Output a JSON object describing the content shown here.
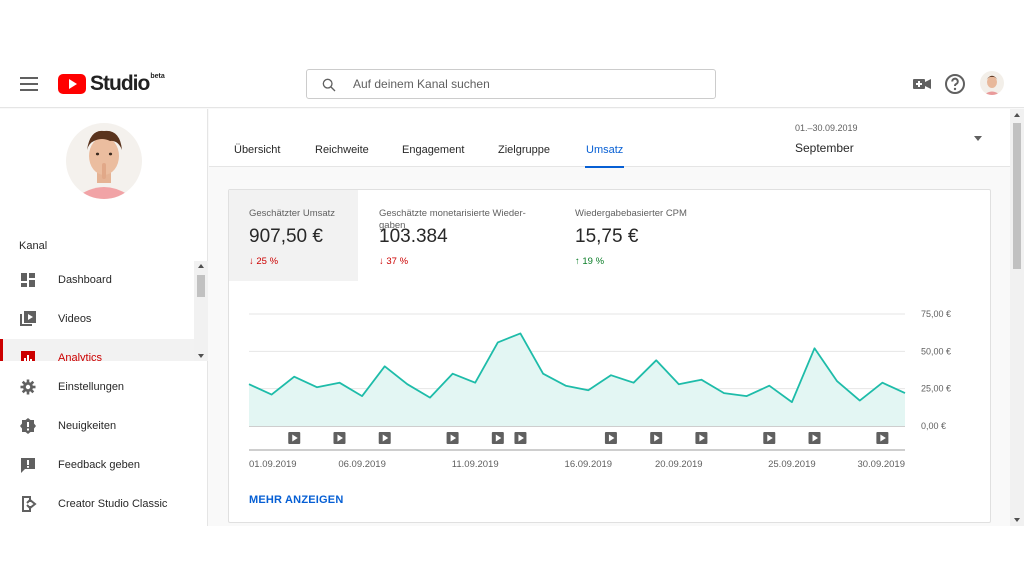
{
  "header": {
    "logo_text": "Studio",
    "logo_badge": "beta",
    "search_placeholder": "Auf deinem Kanal suchen",
    "icons": [
      "menu-icon",
      "search-icon",
      "create-video-icon",
      "help-icon",
      "avatar"
    ]
  },
  "sidebar": {
    "channel_label": "Kanal",
    "scroll_items": [
      {
        "label": "Dashboard",
        "icon": "dashboard-icon"
      },
      {
        "label": "Videos",
        "icon": "videos-icon"
      },
      {
        "label": "Analytics",
        "icon": "analytics-icon",
        "active": true
      }
    ],
    "bottom_items": [
      {
        "label": "Einstellungen",
        "icon": "gear-icon"
      },
      {
        "label": "Neuigkeiten",
        "icon": "alert-icon"
      },
      {
        "label": "Feedback geben",
        "icon": "feedback-icon"
      },
      {
        "label": "Creator Studio Classic",
        "icon": "exit-icon"
      }
    ]
  },
  "tabs": [
    {
      "label": "Übersicht"
    },
    {
      "label": "Reichweite"
    },
    {
      "label": "Engagement"
    },
    {
      "label": "Zielgruppe"
    },
    {
      "label": "Umsatz",
      "active": true
    }
  ],
  "date_picker": {
    "range": "01.–30.09.2019",
    "label": "September"
  },
  "metrics": [
    {
      "label": "Geschätzter Umsatz",
      "value": "907,50 €",
      "change": "25 %",
      "direction": "down",
      "selected": true
    },
    {
      "label": "Geschätzte monetarisierte Wieder-gaben",
      "label_line1": "Geschätzte monetarisierte Wieder-",
      "label_line2": "gaben",
      "value": "103.384",
      "change": "37 %",
      "direction": "down"
    },
    {
      "label": "Wiedergabebasierter CPM",
      "value": "15,75 €",
      "change": "19 %",
      "direction": "up"
    }
  ],
  "more_link": "MEHR ANZEIGEN",
  "colors": {
    "accent": "#065fd4",
    "line": "#1ebca9",
    "fill": "#e3f6f3",
    "down": "#cc0000",
    "up": "#0a7d27",
    "brand": "#ff0000"
  },
  "chart_data": {
    "type": "area",
    "x": [
      "01.09.2019",
      "02.09.2019",
      "03.09.2019",
      "04.09.2019",
      "05.09.2019",
      "06.09.2019",
      "07.09.2019",
      "08.09.2019",
      "09.09.2019",
      "10.09.2019",
      "11.09.2019",
      "12.09.2019",
      "13.09.2019",
      "14.09.2019",
      "15.09.2019",
      "16.09.2019",
      "17.09.2019",
      "18.09.2019",
      "19.09.2019",
      "20.09.2019",
      "21.09.2019",
      "22.09.2019",
      "23.09.2019",
      "24.09.2019",
      "25.09.2019",
      "26.09.2019",
      "27.09.2019",
      "28.09.2019",
      "29.09.2019",
      "30.09.2019"
    ],
    "x_tick_labels": [
      "01.09.2019",
      "06.09.2019",
      "11.09.2019",
      "16.09.2019",
      "20.09.2019",
      "25.09.2019",
      "30.09.2019"
    ],
    "x_tick_index": [
      0,
      5,
      10,
      15,
      19,
      24,
      29
    ],
    "series": [
      {
        "values": [
          28,
          21,
          33,
          26,
          29,
          20,
          40,
          28,
          19,
          35,
          29,
          56,
          62,
          35,
          27,
          24,
          34,
          29,
          44,
          28,
          31,
          22,
          20,
          27,
          16,
          52,
          30,
          17,
          29,
          22
        ]
      }
    ],
    "y_ticks": [
      "0,00 €",
      "25,00 €",
      "50,00 €",
      "75,00 €"
    ],
    "y_tick_values": [
      0,
      25,
      50,
      75
    ],
    "ylim": [
      0,
      75
    ],
    "grid": true,
    "video_markers": [
      2,
      4,
      6,
      9,
      11,
      12,
      16,
      18,
      20,
      23,
      25,
      28
    ]
  }
}
